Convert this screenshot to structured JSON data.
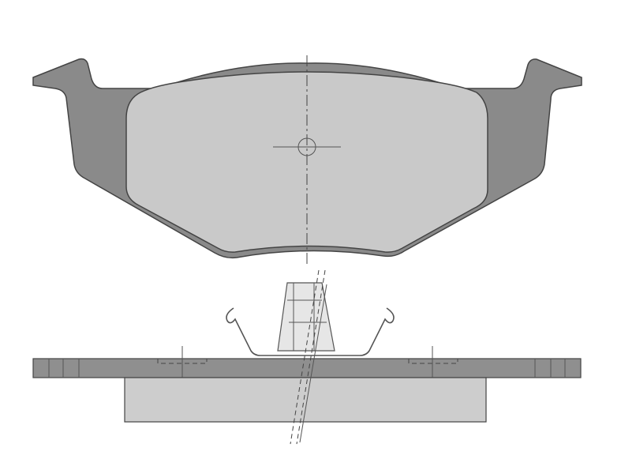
{
  "drawing": {
    "views": [
      "front-view",
      "side-view"
    ],
    "colors": {
      "backing_plate": "#8a8a8a",
      "friction_lining": "#c9c9c9",
      "outline": "#444444",
      "background": "#ffffff"
    }
  }
}
